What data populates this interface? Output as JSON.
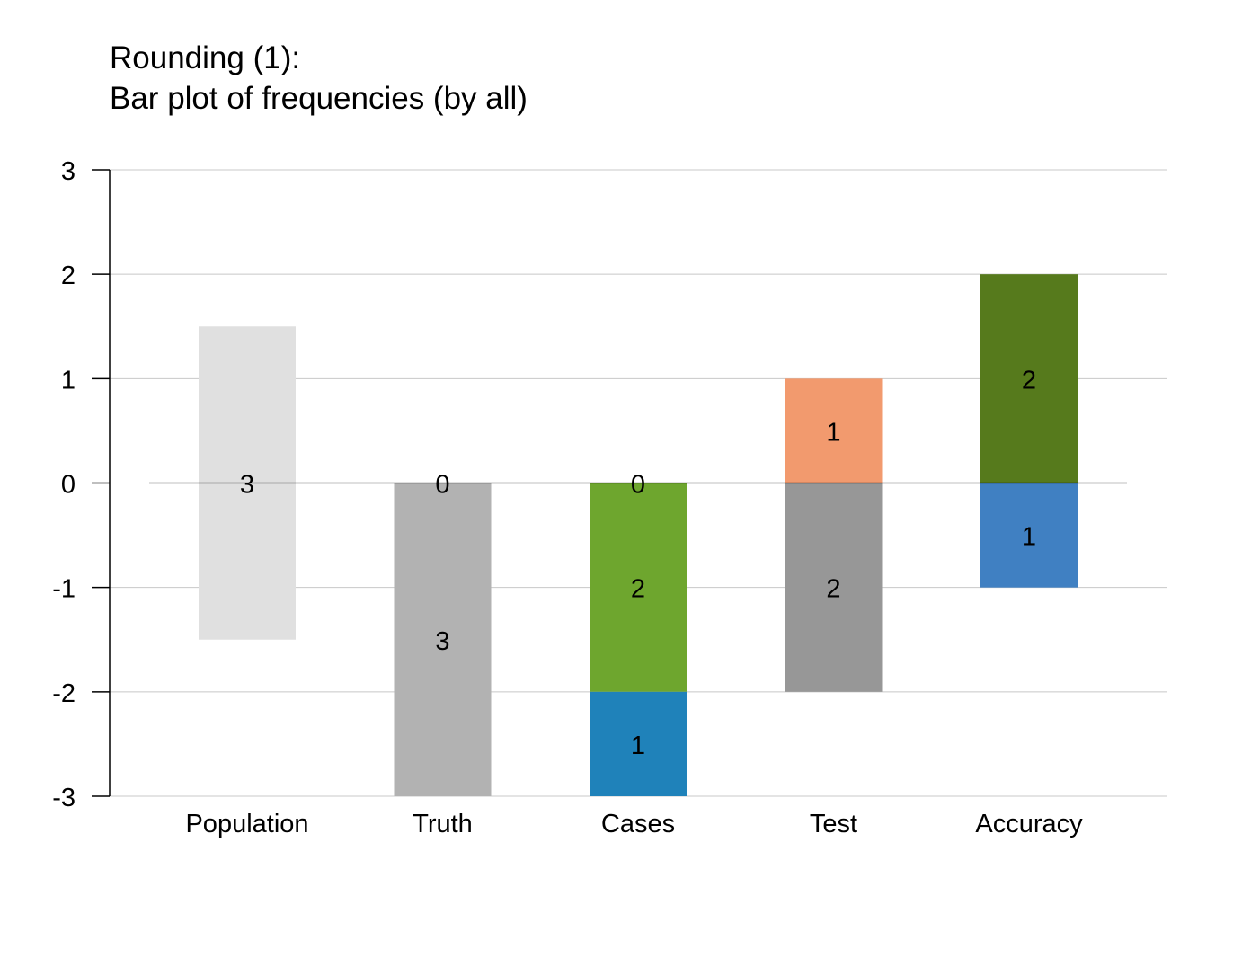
{
  "chart_data": {
    "type": "bar",
    "title": "Rounding (1):",
    "subtitle": "Bar plot of frequencies (by all)",
    "ylim": [
      -3,
      3
    ],
    "y_ticks": [
      3,
      2,
      1,
      0,
      -1,
      -2,
      -3
    ],
    "grid": true,
    "categories": [
      "Population",
      "Truth",
      "Cases",
      "Test",
      "Accuracy"
    ],
    "bars": [
      {
        "category": "Population",
        "segments": [
          {
            "from": -1.5,
            "to": 1.5,
            "label": "3",
            "label_at": 0,
            "color": "#e0e0e0"
          }
        ]
      },
      {
        "category": "Truth",
        "segments": [
          {
            "from": 0,
            "to": 0,
            "label": "0",
            "label_at": 0,
            "color": "#9ed08c"
          },
          {
            "from": 0,
            "to": -3,
            "label": "3",
            "label_at": -1.5,
            "color": "#b2b2b2"
          }
        ]
      },
      {
        "category": "Cases",
        "segments": [
          {
            "from": 0,
            "to": 0,
            "label": "0",
            "label_at": 0,
            "color": "#f4a582"
          },
          {
            "from": 0,
            "to": -2,
            "label": "2",
            "label_at": -1,
            "color": "#6ea62e"
          },
          {
            "from": -2,
            "to": -3,
            "label": "1",
            "label_at": -2.5,
            "color": "#1f82ba"
          }
        ]
      },
      {
        "category": "Test",
        "segments": [
          {
            "from": 0,
            "to": 1,
            "label": "1",
            "label_at": 0.5,
            "color": "#f29a6e"
          },
          {
            "from": 0,
            "to": -2,
            "label": "2",
            "label_at": -1,
            "color": "#979797"
          }
        ]
      },
      {
        "category": "Accuracy",
        "segments": [
          {
            "from": 0,
            "to": 2,
            "label": "2",
            "label_at": 1,
            "color": "#567a1c"
          },
          {
            "from": 0,
            "to": -1,
            "label": "1",
            "label_at": -0.5,
            "color": "#4080c2"
          }
        ]
      }
    ],
    "colors": {
      "grid": "#c8c8c8",
      "axis": "#000000",
      "baseline": "#000000"
    }
  }
}
